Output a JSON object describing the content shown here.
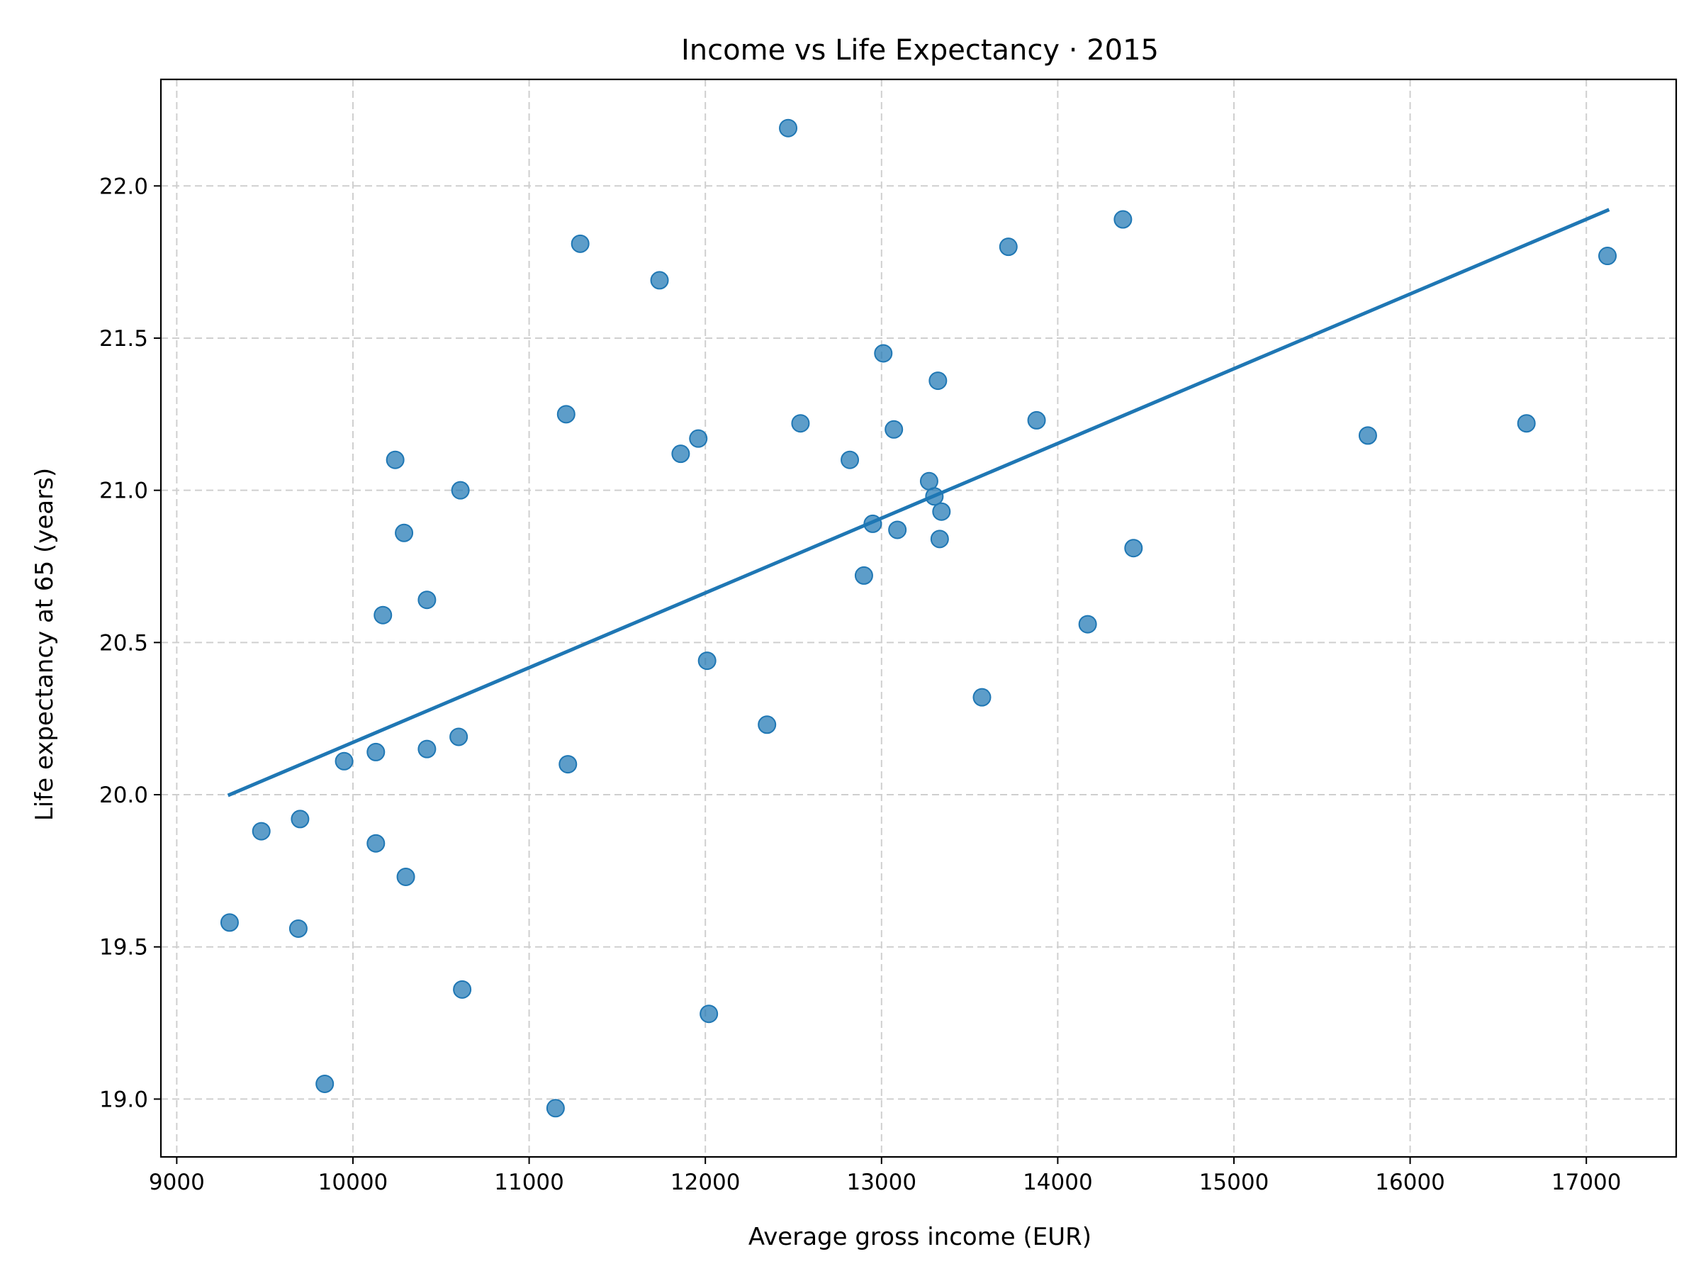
{
  "chart_data": {
    "type": "scatter",
    "title": "Income vs Life Expectancy · 2015",
    "xlabel": "Average gross income (EUR)",
    "ylabel": "Life expectancy at 65 (years)",
    "xlim": [
      8910,
      17510
    ],
    "ylim": [
      18.81,
      22.35
    ],
    "x_ticks": [
      9000,
      10000,
      11000,
      12000,
      13000,
      14000,
      15000,
      16000,
      17000
    ],
    "y_ticks": [
      19.0,
      19.5,
      20.0,
      20.5,
      21.0,
      21.5,
      22.0
    ],
    "grid": true,
    "colors": {
      "points": "#1f77b4",
      "trend": "#1f77b4"
    },
    "points": [
      [
        9300,
        19.58
      ],
      [
        9480,
        19.88
      ],
      [
        9690,
        19.56
      ],
      [
        9700,
        19.92
      ],
      [
        9840,
        19.05
      ],
      [
        9950,
        20.11
      ],
      [
        10130,
        20.14
      ],
      [
        10130,
        19.84
      ],
      [
        10170,
        20.59
      ],
      [
        10240,
        21.1
      ],
      [
        10290,
        20.86
      ],
      [
        10300,
        19.73
      ],
      [
        10420,
        20.64
      ],
      [
        10420,
        20.15
      ],
      [
        10600,
        20.19
      ],
      [
        10610,
        21.0
      ],
      [
        10620,
        19.36
      ],
      [
        11150,
        18.97
      ],
      [
        11210,
        21.25
      ],
      [
        11220,
        20.1
      ],
      [
        11290,
        21.81
      ],
      [
        11740,
        21.69
      ],
      [
        11860,
        21.12
      ],
      [
        11960,
        21.17
      ],
      [
        12010,
        20.44
      ],
      [
        12020,
        19.28
      ],
      [
        12350,
        20.23
      ],
      [
        12470,
        22.19
      ],
      [
        12540,
        21.22
      ],
      [
        12820,
        21.1
      ],
      [
        12900,
        20.72
      ],
      [
        12950,
        20.89
      ],
      [
        13010,
        21.45
      ],
      [
        13070,
        21.2
      ],
      [
        13090,
        20.87
      ],
      [
        13270,
        21.03
      ],
      [
        13300,
        20.98
      ],
      [
        13320,
        21.36
      ],
      [
        13330,
        20.84
      ],
      [
        13340,
        20.93
      ],
      [
        13570,
        20.32
      ],
      [
        13720,
        21.8
      ],
      [
        13880,
        21.23
      ],
      [
        14170,
        20.56
      ],
      [
        14370,
        21.89
      ],
      [
        14430,
        20.81
      ],
      [
        15760,
        21.18
      ],
      [
        16660,
        21.22
      ],
      [
        17120,
        21.77
      ]
    ],
    "trendline": {
      "x": [
        9300,
        17120
      ],
      "y": [
        20.0,
        21.92
      ]
    }
  }
}
